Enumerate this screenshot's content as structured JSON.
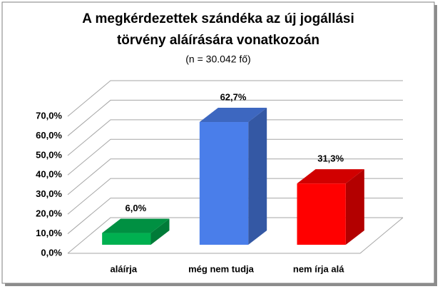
{
  "chart_data": {
    "type": "bar3d",
    "title": [
      "A megkérdezettek szándéka az új jogállási",
      "törvény aláírására vonatkozoán"
    ],
    "subtitle": "(n = 30.042 fő)",
    "categories": [
      "aláírja",
      "még nem tudja",
      "nem írja alá"
    ],
    "values": [
      6.0,
      62.7,
      31.3
    ],
    "value_labels": [
      "6,0%",
      "62,7%",
      "31,3%"
    ],
    "colors": [
      "#00b050",
      "#4a7eea",
      "#ff0000"
    ],
    "ylim": [
      0,
      70
    ],
    "yticks": [
      {
        "value": 0,
        "label": "0,0%"
      },
      {
        "value": 10,
        "label": "10,0%"
      },
      {
        "value": 20,
        "label": "20,0%"
      },
      {
        "value": 30,
        "label": "30,0%"
      },
      {
        "value": 40,
        "label": "40,0%"
      },
      {
        "value": 50,
        "label": "50,0%"
      },
      {
        "value": 60,
        "label": "60,0%"
      },
      {
        "value": 70,
        "label": "70,0%"
      }
    ],
    "grid": true
  }
}
